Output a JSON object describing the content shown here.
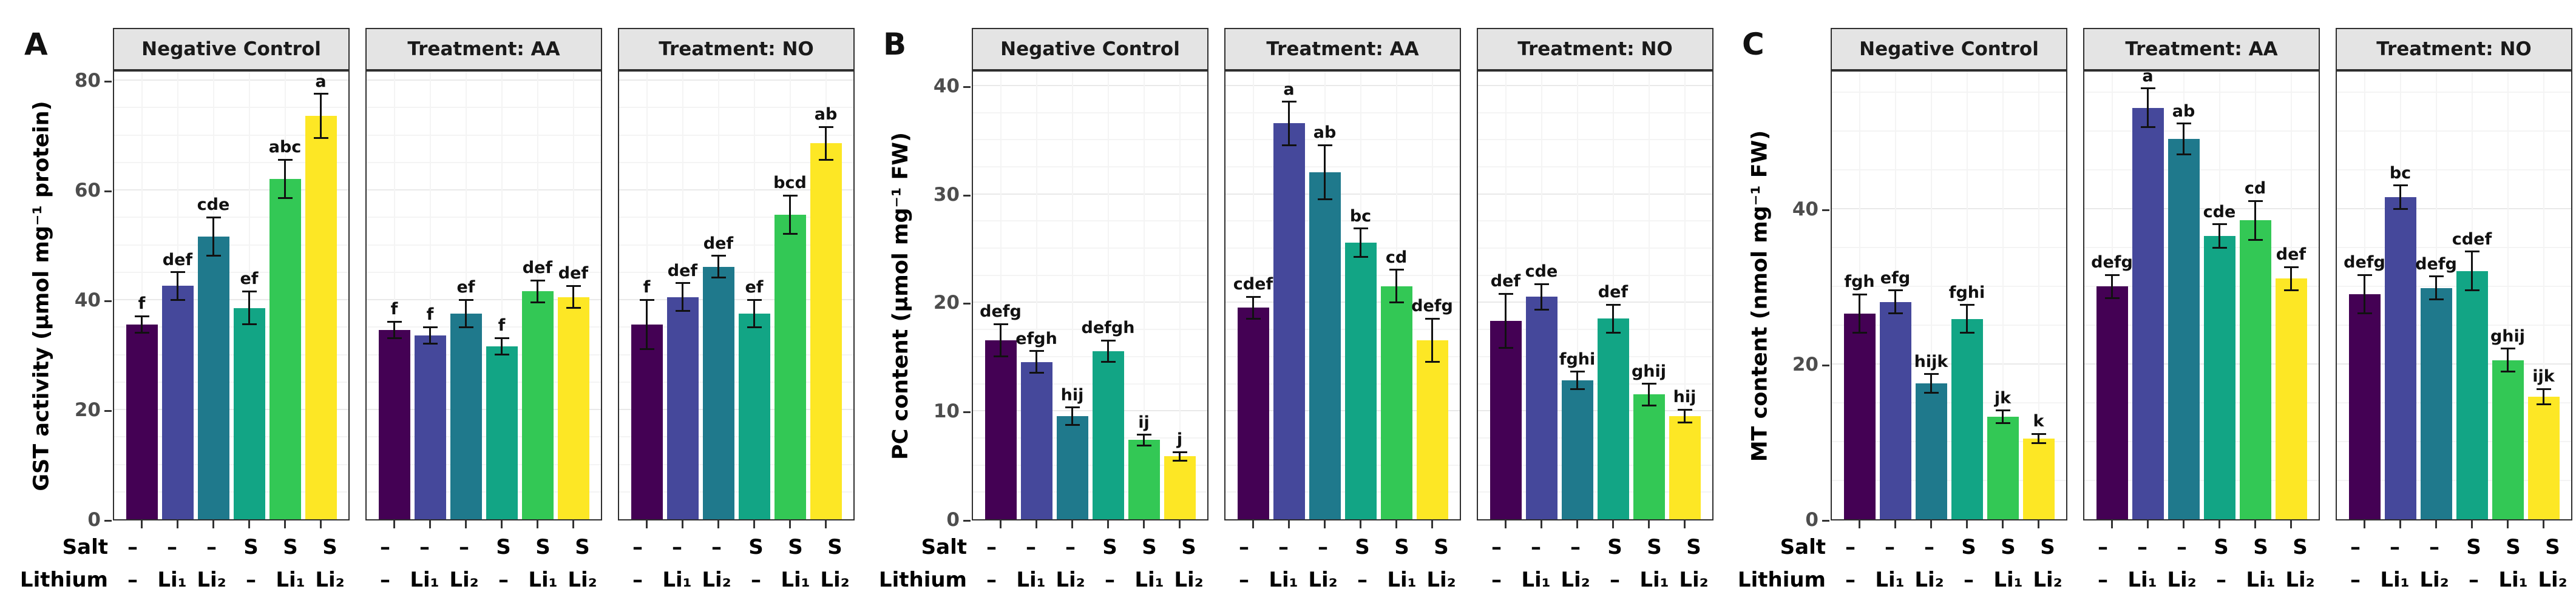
{
  "colors": {
    "bars": [
      "#440154",
      "#45489B",
      "#1F798C",
      "#12A585",
      "#33C855",
      "#FDE725"
    ],
    "strip_bg": "#E4E4E4",
    "panel_border": "#2F2F2F",
    "grid_major": "#E9E9E9",
    "grid_minor": "#F4F4F4",
    "tick_label": "#4D4D4D",
    "error_bar": "#111111"
  },
  "x_axis": {
    "row_labels": [
      "Salt",
      "Lithium"
    ],
    "salt_values": [
      "–",
      "–",
      "–",
      "S",
      "S",
      "S"
    ],
    "lithium_values": [
      "–",
      "Li₁",
      "Li₂",
      "–",
      "Li₁",
      "Li₂"
    ]
  },
  "chart_data": [
    {
      "type": "bar",
      "panel_label": "A",
      "ylabel": "GST activity (µmol mg⁻¹ protein)",
      "yticks": [
        0,
        20,
        40,
        60,
        80
      ],
      "ylim": [
        0,
        82
      ],
      "minor_step": 10,
      "grid": true,
      "categories": [
        "–/–",
        "–/Li₁",
        "–/Li₂",
        "S/–",
        "S/Li₁",
        "S/Li₂"
      ],
      "facets": [
        {
          "title": "Negative Control",
          "values": [
            35.5,
            42.5,
            51.5,
            38.5,
            62,
            73.5
          ],
          "errors": [
            1.5,
            2.5,
            3.5,
            3,
            3.5,
            4
          ],
          "letters": [
            "f",
            "def",
            "cde",
            "ef",
            "abc",
            "a"
          ]
        },
        {
          "title": "Treatment: AA",
          "values": [
            34.5,
            33.5,
            37.5,
            31.5,
            41.5,
            40.5
          ],
          "errors": [
            1.5,
            1.5,
            2.5,
            1.5,
            2,
            2
          ],
          "letters": [
            "f",
            "f",
            "ef",
            "f",
            "def",
            "def"
          ]
        },
        {
          "title": "Treatment: NO",
          "values": [
            35.5,
            40.5,
            46,
            37.5,
            55.5,
            68.5
          ],
          "errors": [
            4.5,
            2.5,
            2,
            2.5,
            3.5,
            3
          ],
          "letters": [
            "f",
            "def",
            "def",
            "ef",
            "bcd",
            "ab"
          ]
        }
      ]
    },
    {
      "type": "bar",
      "panel_label": "B",
      "ylabel": "PC content (µmol mg⁻¹ FW)",
      "yticks": [
        0,
        10,
        20,
        30,
        40
      ],
      "ylim": [
        0,
        41.5
      ],
      "minor_step": 5,
      "grid": true,
      "categories": [
        "–/–",
        "–/Li₁",
        "–/Li₂",
        "S/–",
        "S/Li₁",
        "S/Li₂"
      ],
      "facets": [
        {
          "title": "Negative Control",
          "values": [
            16.5,
            14.5,
            9.5,
            15.5,
            7.3,
            5.8
          ],
          "errors": [
            1.5,
            1,
            0.8,
            1,
            0.5,
            0.4
          ],
          "letters": [
            "defg",
            "efgh",
            "hij",
            "defgh",
            "ij",
            "j"
          ]
        },
        {
          "title": "Treatment: AA",
          "values": [
            19.5,
            36.5,
            32,
            25.5,
            21.5,
            16.5
          ],
          "errors": [
            1,
            2,
            2.5,
            1.3,
            1.5,
            2
          ],
          "letters": [
            "cdef",
            "a",
            "ab",
            "bc",
            "cd",
            "defg"
          ]
        },
        {
          "title": "Treatment: NO",
          "values": [
            18.3,
            20.5,
            12.8,
            18.5,
            11.5,
            9.5
          ],
          "errors": [
            2.5,
            1.2,
            0.8,
            1.3,
            1,
            0.6
          ],
          "letters": [
            "def",
            "cde",
            "fghi",
            "def",
            "ghij",
            "hij"
          ]
        }
      ]
    },
    {
      "type": "bar",
      "panel_label": "C",
      "ylabel": "MT content (nmol mg⁻¹ FW)",
      "yticks": [
        0,
        20,
        40
      ],
      "ylim": [
        0,
        58
      ],
      "minor_step": 10,
      "grid": true,
      "categories": [
        "–/–",
        "–/Li₁",
        "–/Li₂",
        "S/–",
        "S/Li₁",
        "S/Li₂"
      ],
      "facets": [
        {
          "title": "Negative Control",
          "values": [
            26.5,
            28,
            17.5,
            25.8,
            13.2,
            10.4
          ],
          "errors": [
            2.5,
            1.5,
            1.2,
            1.8,
            0.8,
            0.6
          ],
          "letters": [
            "fgh",
            "efg",
            "hijk",
            "fghi",
            "jk",
            "k"
          ]
        },
        {
          "title": "Treatment: AA",
          "values": [
            30,
            53,
            49,
            36.5,
            38.5,
            31
          ],
          "errors": [
            1.5,
            2.5,
            2,
            1.5,
            2.5,
            1.5
          ],
          "letters": [
            "defg",
            "a",
            "ab",
            "cde",
            "cd",
            "def"
          ]
        },
        {
          "title": "Treatment: NO",
          "values": [
            29,
            41.5,
            29.8,
            32,
            20.5,
            15.8
          ],
          "errors": [
            2.5,
            1.5,
            1.5,
            2.5,
            1.5,
            1
          ],
          "letters": [
            "defg",
            "bc",
            "defg",
            "cdef",
            "ghij",
            "ijk"
          ]
        }
      ]
    }
  ]
}
